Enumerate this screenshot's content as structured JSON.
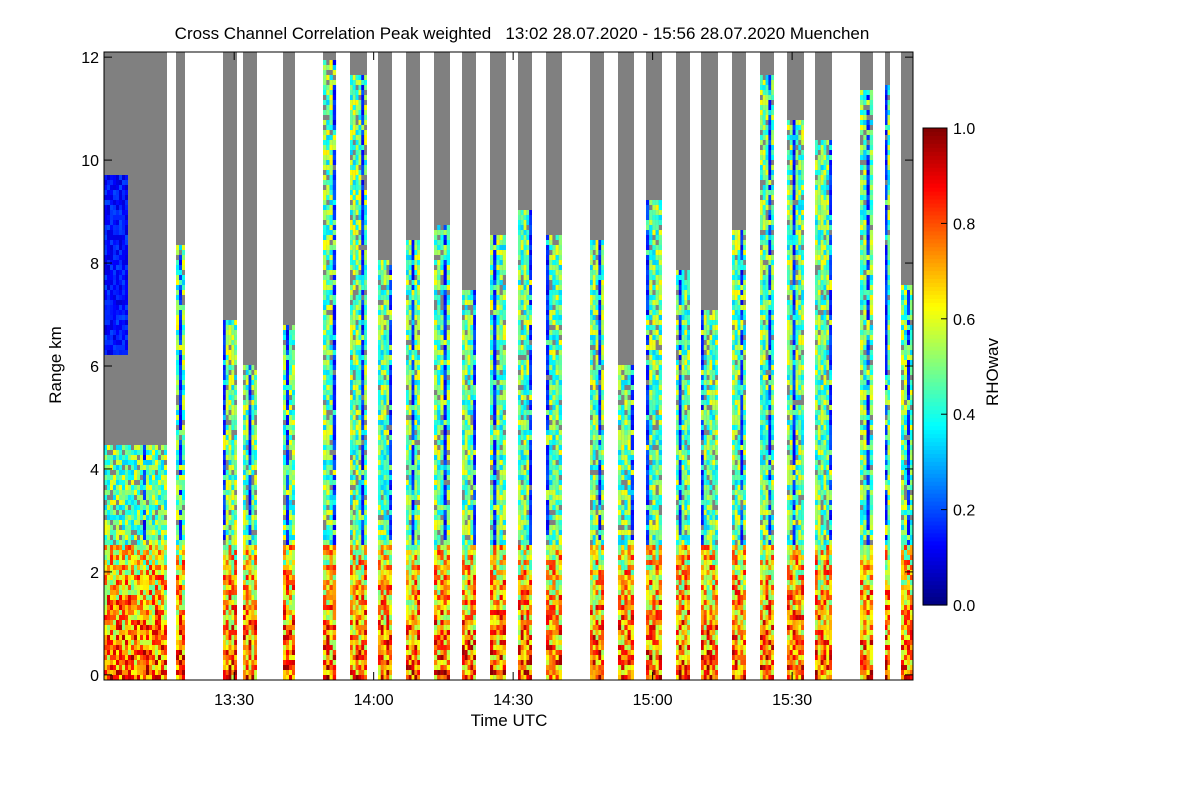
{
  "chart_data": {
    "type": "heatmap",
    "title": "Cross Channel Correlation Peak weighted   13:02 28.07.2020 - 15:56 28.07.2020 Muenchen",
    "xlabel": "Time UTC",
    "ylabel": "Range km",
    "x_range_minutes_utc": [
      782,
      956
    ],
    "y_range_km": [
      -0.1,
      12.1
    ],
    "x_ticks": [
      {
        "value": 810,
        "label": "13:30"
      },
      {
        "value": 840,
        "label": "14:00"
      },
      {
        "value": 870,
        "label": "14:30"
      },
      {
        "value": 900,
        "label": "15:00"
      },
      {
        "value": 930,
        "label": "15:30"
      }
    ],
    "y_ticks": [
      {
        "value": 0,
        "label": "0"
      },
      {
        "value": 2,
        "label": "2"
      },
      {
        "value": 4,
        "label": "4"
      },
      {
        "value": 6,
        "label": "6"
      },
      {
        "value": 8,
        "label": "8"
      },
      {
        "value": 10,
        "label": "10"
      },
      {
        "value": 12,
        "label": "12"
      }
    ],
    "colorbar": {
      "label": "RHOwav",
      "range": [
        0.0,
        1.0
      ],
      "colormap": "jet",
      "ticks": [
        {
          "value": 0.0,
          "label": "0.0"
        },
        {
          "value": 0.2,
          "label": "0.2"
        },
        {
          "value": 0.4,
          "label": "0.4"
        },
        {
          "value": 0.6,
          "label": "0.6"
        },
        {
          "value": 0.8,
          "label": "0.8"
        },
        {
          "value": 1.0,
          "label": "1.0"
        }
      ]
    },
    "no_data_color": "#808080",
    "measurement_periods_utc_minutes": [
      [
        782,
        795.5
      ],
      [
        797.5,
        799.5
      ],
      [
        807.5,
        810.5
      ],
      [
        812,
        815
      ],
      [
        820.5,
        823
      ],
      [
        829,
        832
      ],
      [
        835,
        838.5
      ],
      [
        841,
        844
      ],
      [
        847,
        850
      ],
      [
        853,
        856.5
      ],
      [
        859,
        862
      ],
      [
        865,
        868.5
      ],
      [
        871,
        874
      ],
      [
        877,
        880.5
      ],
      [
        886.5,
        889.5
      ],
      [
        892.5,
        896
      ],
      [
        898.5,
        902
      ],
      [
        905,
        908
      ],
      [
        910.5,
        914
      ],
      [
        917,
        920
      ],
      [
        923,
        926
      ],
      [
        929,
        932.5
      ],
      [
        935,
        938.5
      ],
      [
        944.5,
        947.5
      ],
      [
        950,
        951
      ],
      [
        953.5,
        956
      ]
    ],
    "features": [
      {
        "name": "low-level aerosol layer",
        "range_km": [
          0,
          2.5
        ],
        "rhowav_typical": 0.8
      },
      {
        "name": "upper depolarizing layer",
        "time_utc": "13:02-13:15",
        "range_km": [
          6.2,
          9.7
        ],
        "rhowav_typical": 0.15
      },
      {
        "name": "profile column signal",
        "range_km": [
          2.5,
          12
        ],
        "rhowav_typical": 0.45
      }
    ]
  }
}
